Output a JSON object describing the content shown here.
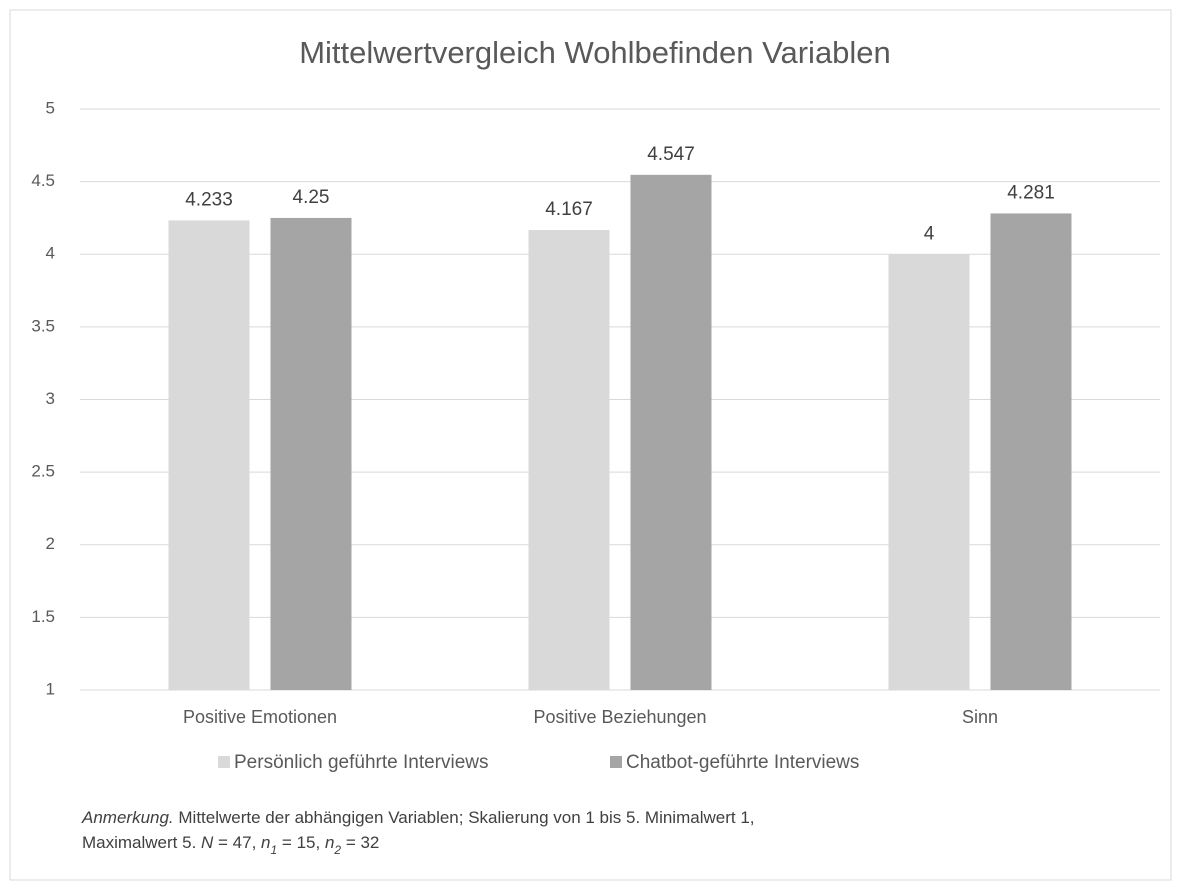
{
  "chart_data": {
    "type": "bar",
    "title": "Mittelwertvergleich Wohlbefinden Variablen",
    "categories": [
      "Positive Emotionen",
      "Positive Beziehungen",
      "Sinn"
    ],
    "series": [
      {
        "name": "Persönlich geführte Interviews",
        "color": "#d9d9d9",
        "values": [
          4.233,
          4.167,
          4
        ]
      },
      {
        "name": "Chatbot-geführte Interviews",
        "color": "#a5a5a5",
        "values": [
          4.25,
          4.547,
          4.281
        ]
      }
    ],
    "ylim": [
      1,
      5
    ],
    "yticks": [
      1,
      1.5,
      2,
      2.5,
      3,
      3.5,
      4,
      4.5,
      5
    ],
    "grid": true,
    "legend": "bottom",
    "note": [
      [
        {
          "text": "Anmerkung.",
          "style": "italic"
        },
        {
          "text": " Mittelwerte der abhängigen Variablen; Skalierung von 1 bis 5. Minimalwert 1,",
          "style": "normal"
        }
      ],
      [
        {
          "text": "Maximalwert 5. ",
          "style": "normal"
        },
        {
          "text": "N",
          "style": "italic"
        },
        {
          "text": " = 47, ",
          "style": "normal"
        },
        {
          "text": "n",
          "style": "italic"
        },
        {
          "text": "1",
          "style": "italic-sub"
        },
        {
          "text": " = 15, ",
          "style": "normal"
        },
        {
          "text": "n",
          "style": "italic"
        },
        {
          "text": "2",
          "style": "italic-sub"
        },
        {
          "text": " = 32",
          "style": "normal"
        }
      ]
    ]
  }
}
